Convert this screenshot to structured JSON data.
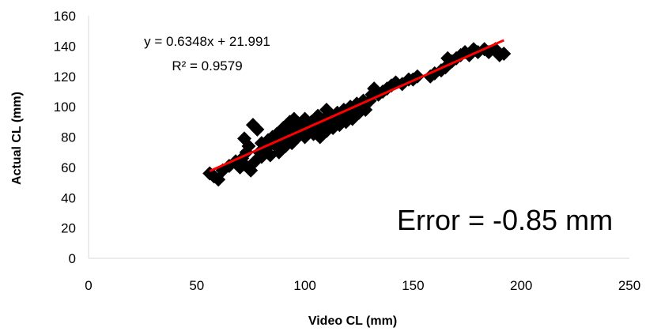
{
  "chart_data": {
    "type": "scatter",
    "title": "",
    "xlabel": "Video CL (mm)",
    "ylabel": "Actual CL (mm)",
    "xlim": [
      0,
      250
    ],
    "ylim": [
      0,
      160
    ],
    "xticks": [
      0,
      50,
      100,
      150,
      200,
      250
    ],
    "yticks": [
      0,
      20,
      40,
      60,
      80,
      100,
      120,
      140,
      160
    ],
    "grid": false,
    "marker_color": "#000000",
    "trendline_color": "#ff0000",
    "trendline": {
      "slope": 0.6348,
      "intercept": 21.991,
      "x_range": [
        56,
        192
      ]
    },
    "annotations": {
      "equation": "y = 0.6348x + 21.991",
      "r_squared": "R² = 0.9579",
      "error": "Error = -0.85 mm"
    },
    "points": [
      [
        56,
        56
      ],
      [
        58,
        54
      ],
      [
        60,
        52
      ],
      [
        62,
        58
      ],
      [
        65,
        61
      ],
      [
        68,
        64
      ],
      [
        70,
        60
      ],
      [
        71,
        66
      ],
      [
        72,
        62
      ],
      [
        73,
        70
      ],
      [
        72,
        79
      ],
      [
        74,
        74
      ],
      [
        75,
        58
      ],
      [
        76,
        88
      ],
      [
        77,
        64
      ],
      [
        78,
        85
      ],
      [
        79,
        70
      ],
      [
        80,
        67
      ],
      [
        80,
        76
      ],
      [
        82,
        72
      ],
      [
        83,
        78
      ],
      [
        84,
        68
      ],
      [
        85,
        80
      ],
      [
        86,
        75
      ],
      [
        87,
        82
      ],
      [
        88,
        70
      ],
      [
        89,
        84
      ],
      [
        90,
        78
      ],
      [
        90,
        86
      ],
      [
        91,
        74
      ],
      [
        92,
        82
      ],
      [
        93,
        90
      ],
      [
        94,
        76
      ],
      [
        95,
        84
      ],
      [
        95,
        92
      ],
      [
        96,
        79
      ],
      [
        97,
        88
      ],
      [
        98,
        82
      ],
      [
        99,
        86
      ],
      [
        100,
        80
      ],
      [
        100,
        92
      ],
      [
        101,
        84
      ],
      [
        102,
        88
      ],
      [
        103,
        90
      ],
      [
        104,
        82
      ],
      [
        105,
        86
      ],
      [
        106,
        94
      ],
      [
        107,
        80
      ],
      [
        108,
        88
      ],
      [
        109,
        92
      ],
      [
        110,
        98
      ],
      [
        110,
        84
      ],
      [
        111,
        90
      ],
      [
        112,
        94
      ],
      [
        113,
        86
      ],
      [
        114,
        92
      ],
      [
        115,
        96
      ],
      [
        116,
        88
      ],
      [
        117,
        94
      ],
      [
        118,
        98
      ],
      [
        119,
        90
      ],
      [
        120,
        96
      ],
      [
        121,
        100
      ],
      [
        122,
        92
      ],
      [
        123,
        98
      ],
      [
        124,
        102
      ],
      [
        125,
        96
      ],
      [
        126,
        100
      ],
      [
        127,
        104
      ],
      [
        128,
        98
      ],
      [
        130,
        104
      ],
      [
        131,
        108
      ],
      [
        132,
        112
      ],
      [
        134,
        108
      ],
      [
        136,
        110
      ],
      [
        138,
        112
      ],
      [
        140,
        114
      ],
      [
        142,
        116
      ],
      [
        145,
        115
      ],
      [
        148,
        118
      ],
      [
        150,
        118
      ],
      [
        152,
        120
      ],
      [
        158,
        120
      ],
      [
        160,
        122
      ],
      [
        163,
        124
      ],
      [
        165,
        126
      ],
      [
        166,
        132
      ],
      [
        168,
        130
      ],
      [
        170,
        132
      ],
      [
        172,
        134
      ],
      [
        174,
        136
      ],
      [
        176,
        134
      ],
      [
        178,
        138
      ],
      [
        180,
        136
      ],
      [
        183,
        138
      ],
      [
        185,
        136
      ],
      [
        188,
        138
      ],
      [
        190,
        134
      ],
      [
        192,
        135
      ]
    ]
  }
}
